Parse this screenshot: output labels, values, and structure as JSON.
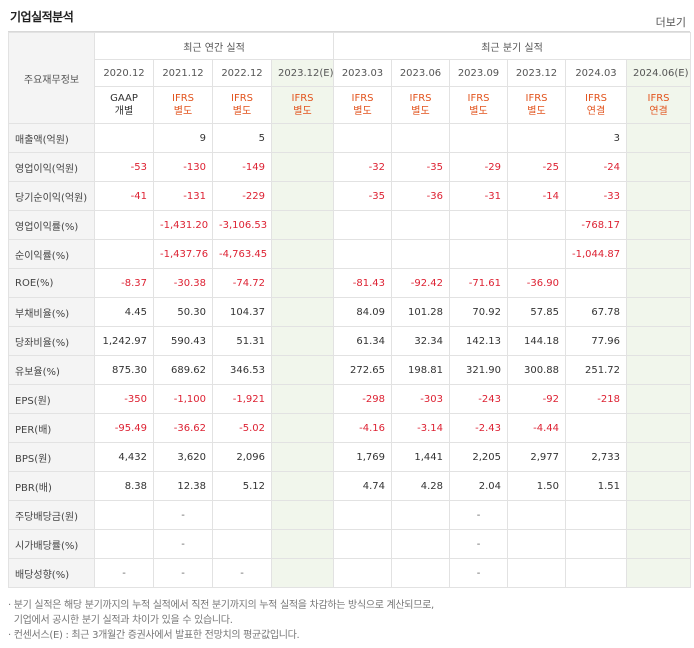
{
  "header": {
    "title": "기업실적분석",
    "more_label": "더보기"
  },
  "table": {
    "corner_label": "주요재무정보",
    "group_annual": "최근 연간 실적",
    "group_quarter": "최근 분기 실적",
    "periods": [
      "2020.12",
      "2021.12",
      "2022.12",
      "2023.12(E)",
      "2023.03",
      "2023.06",
      "2023.09",
      "2023.12",
      "2024.03",
      "2024.06(E)"
    ],
    "standards": [
      [
        "GAAP",
        "개별"
      ],
      [
        "IFRS",
        "별도"
      ],
      [
        "IFRS",
        "별도"
      ],
      [
        "IFRS",
        "별도"
      ],
      [
        "IFRS",
        "별도"
      ],
      [
        "IFRS",
        "별도"
      ],
      [
        "IFRS",
        "별도"
      ],
      [
        "IFRS",
        "별도"
      ],
      [
        "IFRS",
        "연결"
      ],
      [
        "IFRS",
        "연결"
      ]
    ],
    "rows": [
      {
        "label": "매출액(억원)",
        "values": [
          "",
          "9",
          "5",
          "",
          "",
          "",
          "",
          "",
          "3",
          ""
        ]
      },
      {
        "label": "영업이익(억원)",
        "values": [
          "-53",
          "-130",
          "-149",
          "",
          "-32",
          "-35",
          "-29",
          "-25",
          "-24",
          ""
        ]
      },
      {
        "label": "당기순이익(억원)",
        "values": [
          "-41",
          "-131",
          "-229",
          "",
          "-35",
          "-36",
          "-31",
          "-14",
          "-33",
          ""
        ]
      },
      {
        "label": "영업이익률(%)",
        "values": [
          "",
          "-1,431.20",
          "-3,106.53",
          "",
          "",
          "",
          "",
          "",
          "-768.17",
          ""
        ]
      },
      {
        "label": "순이익률(%)",
        "values": [
          "",
          "-1,437.76",
          "-4,763.45",
          "",
          "",
          "",
          "",
          "",
          "-1,044.87",
          ""
        ]
      },
      {
        "label": "ROE(%)",
        "values": [
          "-8.37",
          "-30.38",
          "-74.72",
          "",
          "-81.43",
          "-92.42",
          "-71.61",
          "-36.90",
          "",
          ""
        ]
      },
      {
        "label": "부채비율(%)",
        "values": [
          "4.45",
          "50.30",
          "104.37",
          "",
          "84.09",
          "101.28",
          "70.92",
          "57.85",
          "67.78",
          ""
        ]
      },
      {
        "label": "당좌비율(%)",
        "values": [
          "1,242.97",
          "590.43",
          "51.31",
          "",
          "61.34",
          "32.34",
          "142.13",
          "144.18",
          "77.96",
          ""
        ]
      },
      {
        "label": "유보율(%)",
        "values": [
          "875.30",
          "689.62",
          "346.53",
          "",
          "272.65",
          "198.81",
          "321.90",
          "300.88",
          "251.72",
          ""
        ]
      },
      {
        "label": "EPS(원)",
        "values": [
          "-350",
          "-1,100",
          "-1,921",
          "",
          "-298",
          "-303",
          "-243",
          "-92",
          "-218",
          ""
        ]
      },
      {
        "label": "PER(배)",
        "values": [
          "-95.49",
          "-36.62",
          "-5.02",
          "",
          "-4.16",
          "-3.14",
          "-2.43",
          "-4.44",
          "",
          ""
        ]
      },
      {
        "label": "BPS(원)",
        "values": [
          "4,432",
          "3,620",
          "2,096",
          "",
          "1,769",
          "1,441",
          "2,205",
          "2,977",
          "2,733",
          ""
        ]
      },
      {
        "label": "PBR(배)",
        "values": [
          "8.38",
          "12.38",
          "5.12",
          "",
          "4.74",
          "4.28",
          "2.04",
          "1.50",
          "1.51",
          ""
        ]
      },
      {
        "label": "주당배당금(원)",
        "values": [
          "",
          "-",
          "",
          "",
          "",
          "",
          "-",
          "",
          "",
          ""
        ]
      },
      {
        "label": "시가배당률(%)",
        "values": [
          "",
          "-",
          "",
          "",
          "",
          "",
          "-",
          "",
          "",
          ""
        ]
      },
      {
        "label": "배당성향(%)",
        "values": [
          "-",
          "-",
          "-",
          "",
          "",
          "",
          "-",
          "",
          "",
          ""
        ]
      }
    ]
  },
  "notes": {
    "line1": "· 분기 실적은 해당 분기까지의 누적 실적에서 직전 분기까지의 누적 실적을 차감하는 방식으로 계산되므로,",
    "line2": "  기업에서 공시한 분기 실적과 차이가 있을 수 있습니다.",
    "line3": "· 컨센서스(E) : 최근 3개월간 증권사에서 발표한 전망치의 평균값입니다."
  }
}
